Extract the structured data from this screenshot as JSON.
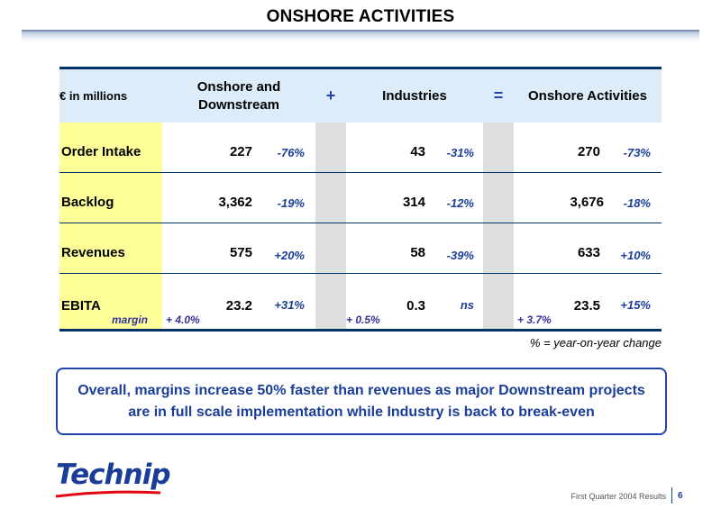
{
  "page": {
    "title": "ONSHORE ACTIVITIES"
  },
  "table": {
    "unit_label": "€ in millions",
    "col_onshore": "Onshore and Downstream",
    "op_plus": "+",
    "col_industries": "Industries",
    "op_equals": "=",
    "col_onshore_activities": "Onshore Activities",
    "rows": [
      {
        "label": "Order Intake",
        "ond_value": "227",
        "ond_change": "-76%",
        "ind_value": "43",
        "ind_change": "-31%",
        "oa_value": "270",
        "oa_change": "-73%"
      },
      {
        "label": "Backlog",
        "ond_value": "3,362",
        "ond_change": "-19%",
        "ind_value": "314",
        "ind_change": "-12%",
        "oa_value": "3,676",
        "oa_change": "-18%"
      },
      {
        "label": "Revenues",
        "ond_value": "575",
        "ond_change": "+20%",
        "ind_value": "58",
        "ind_change": "-39%",
        "oa_value": "633",
        "oa_change": "+10%"
      },
      {
        "label": "EBITA",
        "ond_value": "23.2",
        "ond_change": "+31%",
        "ind_value": "0.3",
        "ind_change": "ns",
        "oa_value": "23.5",
        "oa_change": "+15%"
      }
    ],
    "margin": {
      "label": "margin",
      "ond": "+ 4.0%",
      "ind": "+ 0.5%",
      "oa": "+ 3.7%"
    },
    "note": "% = year-on-year change"
  },
  "callout": {
    "text": "Overall, margins increase 50% faster than revenues as major Downstream projects are in full scale implementation while Industry is back to break-even"
  },
  "footer": {
    "logo": "Technip",
    "caption": "First Quarter 2004 Results",
    "page_number": "6"
  },
  "colors": {
    "navy": "#003366",
    "accent_blue": "#1a3d99",
    "header_bg": "#dcedf9",
    "label_bg": "#ffff99",
    "separator_bg": "#dedede"
  }
}
